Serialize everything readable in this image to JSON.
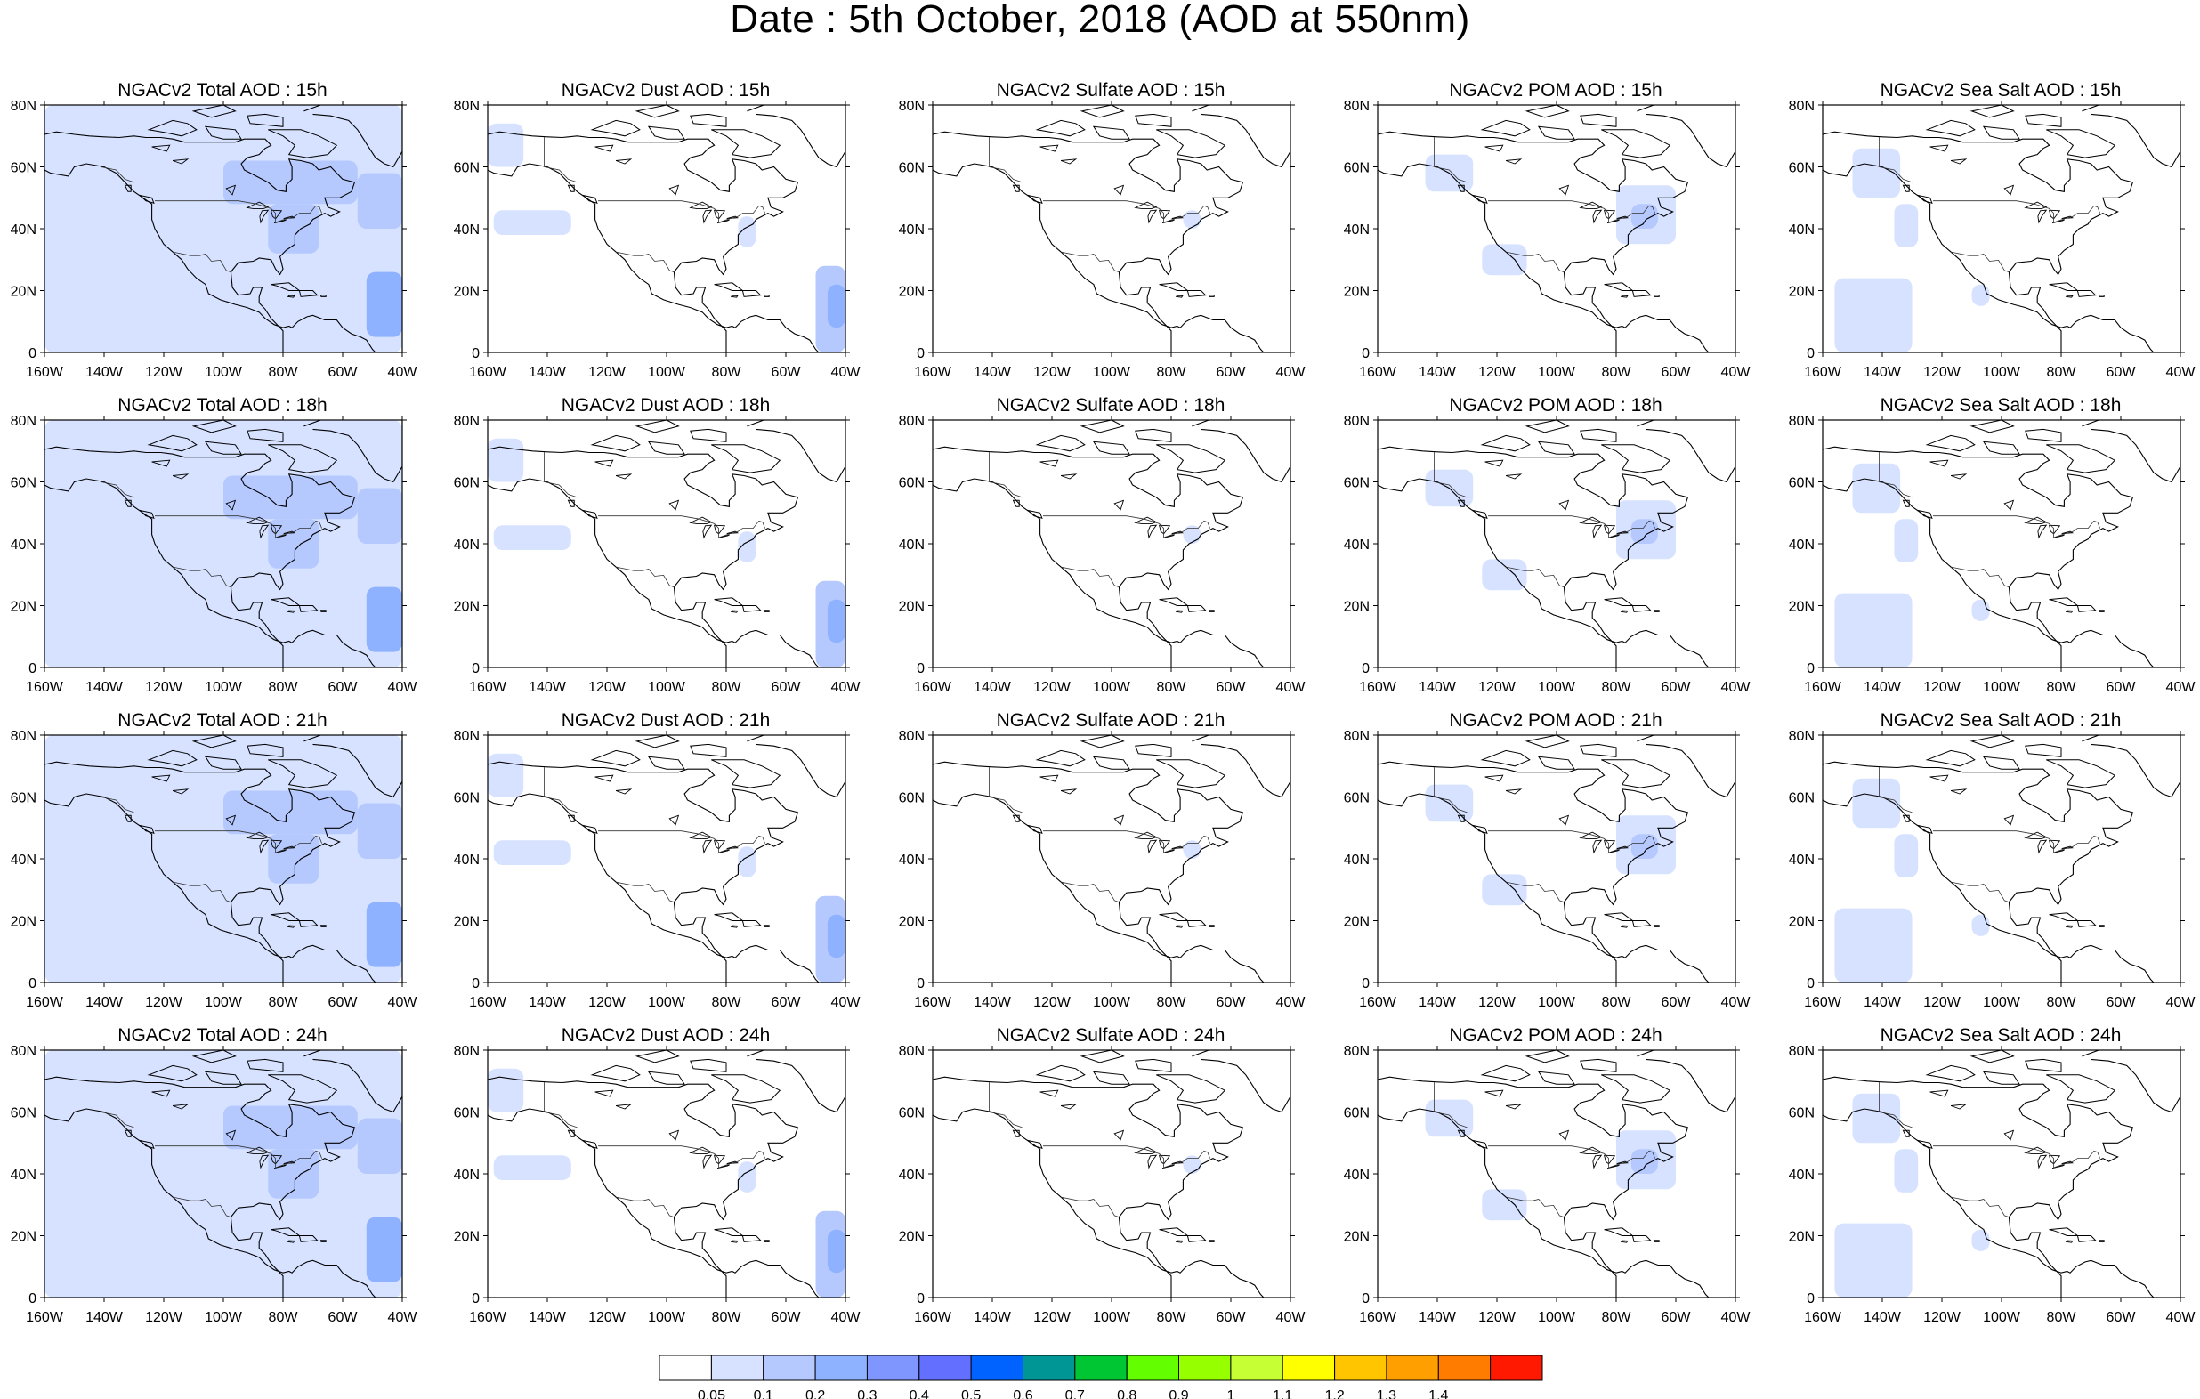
{
  "title": "Date : 5th October, 2018 (AOD at 550nm)",
  "map": {
    "lon_labels": [
      "160W",
      "140W",
      "120W",
      "100W",
      "80W",
      "60W",
      "40W"
    ],
    "lat_labels": [
      "0",
      "20N",
      "40N",
      "60N",
      "80N"
    ],
    "lon_range": [
      -160,
      -40
    ],
    "lat_range": [
      0,
      80
    ]
  },
  "rows": [
    {
      "hour": "15h",
      "panels": [
        {
          "title": "NGACv2 Total AOD : 15h",
          "species": "total"
        },
        {
          "title": "NGACv2 Dust AOD : 15h",
          "species": "dust"
        },
        {
          "title": "NGACv2 Sulfate AOD : 15h",
          "species": "sulfate"
        },
        {
          "title": "NGACv2 POM AOD : 15h",
          "species": "pom"
        },
        {
          "title": "NGACv2 Sea Salt AOD : 15h",
          "species": "seasalt"
        }
      ]
    },
    {
      "hour": "18h",
      "panels": [
        {
          "title": "NGACv2 Total AOD : 18h",
          "species": "total"
        },
        {
          "title": "NGACv2 Dust AOD : 18h",
          "species": "dust"
        },
        {
          "title": "NGACv2 Sulfate AOD : 18h",
          "species": "sulfate"
        },
        {
          "title": "NGACv2 POM AOD : 18h",
          "species": "pom"
        },
        {
          "title": "NGACv2 Sea Salt AOD : 18h",
          "species": "seasalt"
        }
      ]
    },
    {
      "hour": "21h",
      "panels": [
        {
          "title": "NGACv2 Total AOD : 21h",
          "species": "total"
        },
        {
          "title": "NGACv2 Dust AOD : 21h",
          "species": "dust"
        },
        {
          "title": "NGACv2 Sulfate AOD : 21h",
          "species": "sulfate"
        },
        {
          "title": "NGACv2 POM AOD : 21h",
          "species": "pom"
        },
        {
          "title": "NGACv2 Sea Salt AOD : 21h",
          "species": "seasalt"
        }
      ]
    },
    {
      "hour": "24h",
      "panels": [
        {
          "title": "NGACv2 Total AOD : 24h",
          "species": "total"
        },
        {
          "title": "NGACv2 Dust AOD : 24h",
          "species": "dust"
        },
        {
          "title": "NGACv2 Sulfate AOD : 24h",
          "species": "sulfate"
        },
        {
          "title": "NGACv2 POM AOD : 24h",
          "species": "pom"
        },
        {
          "title": "NGACv2 Sea Salt  AOD : 24h",
          "species": "seasalt"
        }
      ]
    }
  ],
  "colorbar": {
    "labels": [
      "0.05",
      "0.1",
      "0.2",
      "0.3",
      "0.4",
      "0.5",
      "0.6",
      "0.7",
      "0.8",
      "0.9",
      "1",
      "1.1",
      "1.2",
      "1.3",
      "1.4"
    ],
    "colors": [
      "#ffffff",
      "#d6e2ff",
      "#b5c9ff",
      "#8eb2ff",
      "#7f96ff",
      "#6370ff",
      "#0063ff",
      "#009696",
      "#00c633",
      "#63ff00",
      "#96ff00",
      "#c6ff33",
      "#ffff00",
      "#ffc600",
      "#ffa000",
      "#ff7c00",
      "#ff1900"
    ]
  },
  "shading": {
    "light_blue": "#d6e2ff",
    "mid_blue": "#b5c9ff",
    "deep_blue": "#8eb2ff"
  }
}
